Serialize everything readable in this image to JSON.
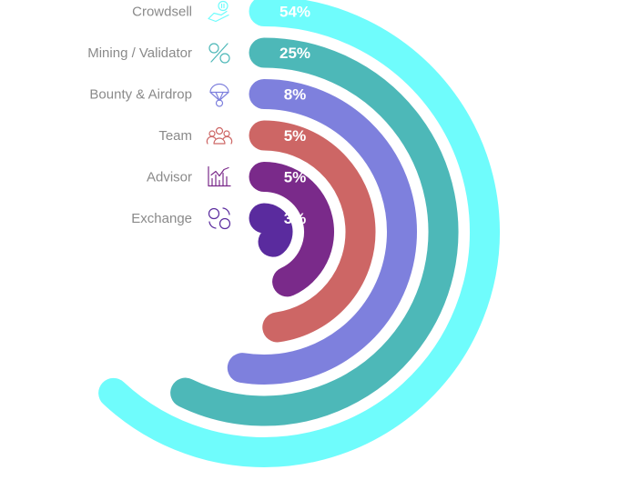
{
  "chart_data": {
    "type": "radial-bar",
    "series": [
      {
        "category": "Crowdsell",
        "value": 54,
        "label": "54%",
        "color": "#6ffcfc",
        "icon": "hand-coin-icon"
      },
      {
        "category": "Mining / Validator",
        "value": 25,
        "label": "25%",
        "color": "#4db8b8",
        "icon": "crypto-percent-icon"
      },
      {
        "category": "Bounty & Airdrop",
        "value": 8,
        "label": "8%",
        "color": "#7e80dd",
        "icon": "parachute-icon"
      },
      {
        "category": "Team",
        "value": 5,
        "label": "5%",
        "color": "#cd6665",
        "icon": "team-icon"
      },
      {
        "category": "Advisor",
        "value": 5,
        "label": "5%",
        "color": "#7a2a8a",
        "icon": "bar-chart-icon"
      },
      {
        "category": "Exchange",
        "value": 3,
        "label": "3%",
        "color": "#5a2b9e",
        "icon": "currency-exchange-icon"
      }
    ]
  }
}
